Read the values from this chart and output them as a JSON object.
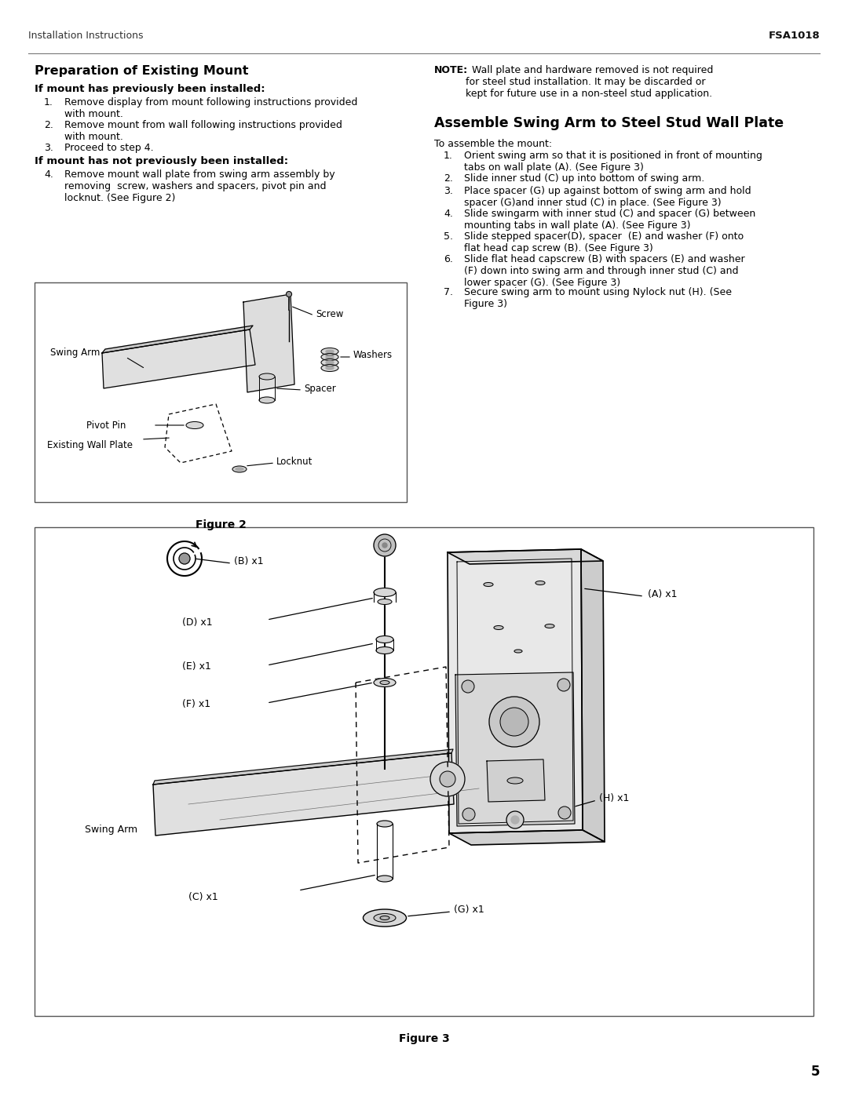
{
  "page_width": 10.8,
  "page_height": 13.97,
  "background_color": "#ffffff",
  "header_left": "Installation Instructions",
  "header_right": "FSA1018",
  "page_number": "5",
  "section1_title": "Preparation of Existing Mount",
  "subsection1_title": "If mount has previously been installed:",
  "subsection1_items": [
    "Remove display from mount following instructions provided\nwith mount.",
    "Remove mount from wall following instructions provided\nwith mount.",
    "Proceed to step 4."
  ],
  "subsection2_title": "If mount has not previously been installed:",
  "subsection2_items": [
    "Remove mount wall plate from swing arm assembly by\nremoving  screw, washers and spacers, pivot pin and\nlocknut. (See Figure 2)"
  ],
  "figure2_caption": "Figure 2",
  "note_bold": "NOTE:",
  "note_text": "  Wall plate and hardware removed is not required\nfor steel stud installation. It may be discarded or\nkept for future use in a non-steel stud application.",
  "section2_title": "Assemble Swing Arm to Steel Stud Wall Plate",
  "section2_intro": "To assemble the mount:",
  "section2_items": [
    "Orient swing arm so that it is positioned in front of mounting\ntabs on wall plate (A). (See Figure 3)",
    "Slide inner stud (C) up into bottom of swing arm.",
    "Place spacer (G) up against bottom of swing arm and hold\nspacer (G)and inner stud (C) in place. (See Figure 3)",
    "Slide swingarm with inner stud (C) and spacer (G) between\nmounting tabs in wall plate (A). (See Figure 3)",
    "Slide stepped spacer(D), spacer  (E) and washer (F) onto\nflat head cap screw (B). (See Figure 3)",
    "Slide flat head capscrew (B) with spacers (E) and washer\n(F) down into swing arm and through inner stud (C) and\nlower spacer (G). (See Figure 3)",
    "Secure swing arm to mount using Nylock nut (H). (See\nFigure 3)"
  ],
  "figure3_caption": "Figure 3"
}
